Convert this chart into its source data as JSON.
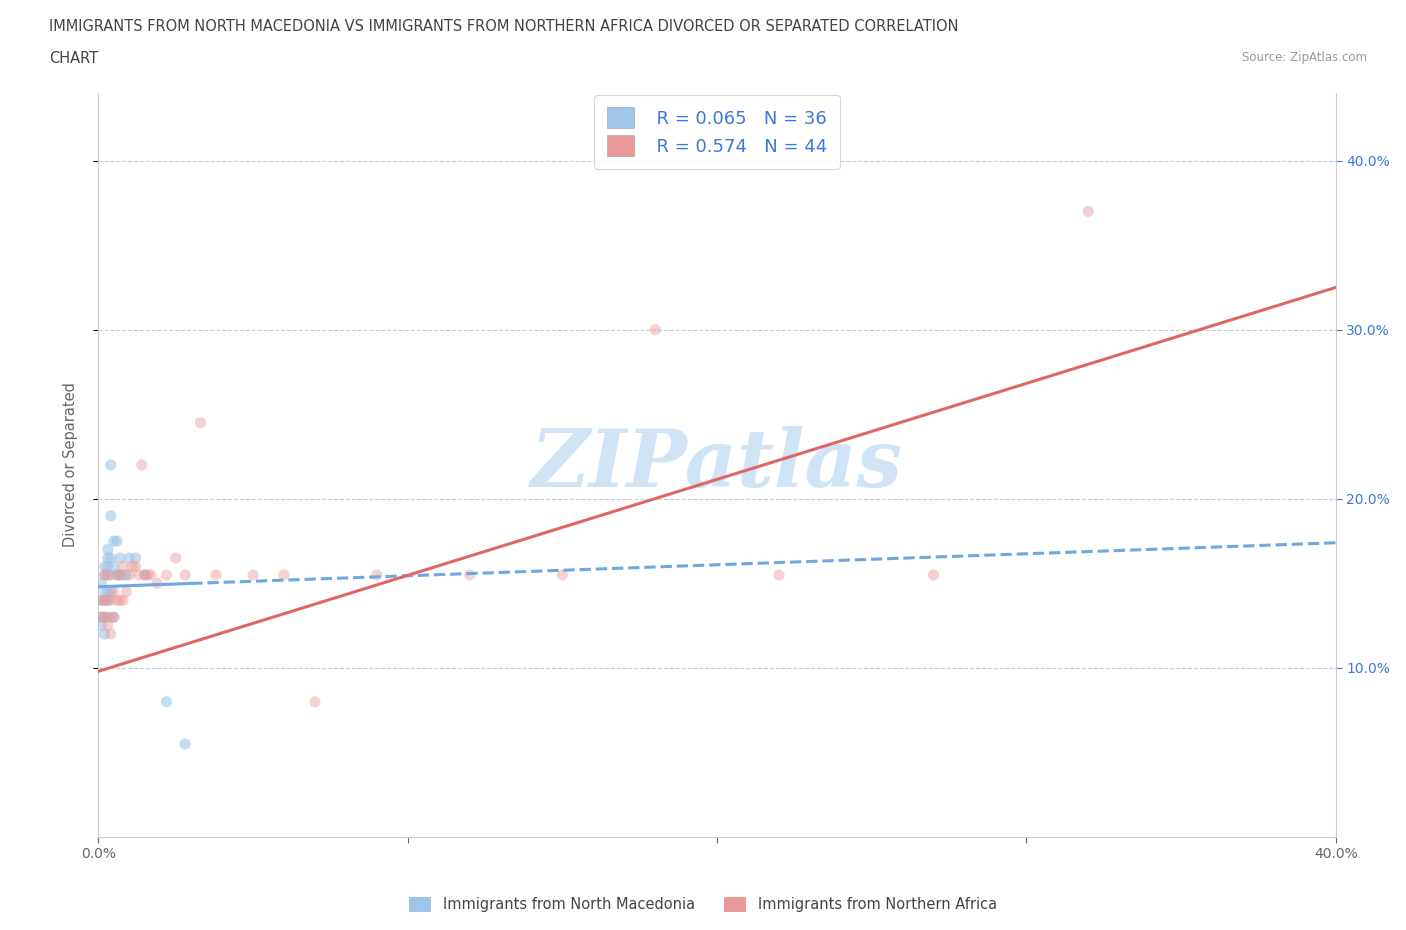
{
  "title_line1": "IMMIGRANTS FROM NORTH MACEDONIA VS IMMIGRANTS FROM NORTHERN AFRICA DIVORCED OR SEPARATED CORRELATION",
  "title_line2": "CHART",
  "source_text": "Source: ZipAtlas.com",
  "ylabel": "Divorced or Separated",
  "xlim": [
    0.0,
    0.4
  ],
  "ylim": [
    0.0,
    0.44
  ],
  "xticks": [
    0.0,
    0.1,
    0.2,
    0.3,
    0.4
  ],
  "yticks": [
    0.1,
    0.2,
    0.3,
    0.4
  ],
  "xticklabels": [
    "0.0%",
    "",
    "",
    "",
    "40.0%"
  ],
  "yticklabels_right": [
    "10.0%",
    "20.0%",
    "30.0%",
    "40.0%"
  ],
  "legend_r1": "R = 0.065",
  "legend_n1": "N = 36",
  "legend_r2": "R = 0.574",
  "legend_n2": "N = 44",
  "color_blue": "#9fc5e8",
  "color_pink": "#ea9999",
  "trendline_blue_color": "#6fa8dc",
  "trendline_pink_color": "#e06666",
  "scatter_blue_alpha": 0.6,
  "scatter_pink_alpha": 0.45,
  "blue_scatter_x": [
    0.001,
    0.001,
    0.001,
    0.001,
    0.002,
    0.002,
    0.002,
    0.002,
    0.002,
    0.002,
    0.003,
    0.003,
    0.003,
    0.003,
    0.003,
    0.003,
    0.003,
    0.004,
    0.004,
    0.004,
    0.004,
    0.004,
    0.005,
    0.005,
    0.005,
    0.006,
    0.006,
    0.007,
    0.007,
    0.008,
    0.009,
    0.01,
    0.012,
    0.015,
    0.022,
    0.028
  ],
  "blue_scatter_y": [
    0.14,
    0.15,
    0.13,
    0.125,
    0.155,
    0.145,
    0.16,
    0.13,
    0.14,
    0.12,
    0.155,
    0.17,
    0.16,
    0.14,
    0.165,
    0.145,
    0.13,
    0.22,
    0.19,
    0.165,
    0.155,
    0.145,
    0.175,
    0.16,
    0.13,
    0.155,
    0.175,
    0.155,
    0.165,
    0.155,
    0.155,
    0.165,
    0.165,
    0.155,
    0.08,
    0.055
  ],
  "pink_scatter_x": [
    0.001,
    0.001,
    0.002,
    0.002,
    0.002,
    0.003,
    0.003,
    0.003,
    0.004,
    0.004,
    0.004,
    0.005,
    0.005,
    0.006,
    0.006,
    0.007,
    0.007,
    0.008,
    0.008,
    0.009,
    0.01,
    0.011,
    0.012,
    0.013,
    0.014,
    0.015,
    0.016,
    0.017,
    0.019,
    0.022,
    0.025,
    0.028,
    0.033,
    0.038,
    0.05,
    0.06,
    0.07,
    0.09,
    0.12,
    0.15,
    0.18,
    0.22,
    0.27,
    0.32
  ],
  "pink_scatter_y": [
    0.14,
    0.13,
    0.155,
    0.14,
    0.13,
    0.155,
    0.14,
    0.125,
    0.14,
    0.13,
    0.12,
    0.145,
    0.13,
    0.155,
    0.14,
    0.155,
    0.14,
    0.16,
    0.14,
    0.145,
    0.155,
    0.16,
    0.16,
    0.155,
    0.22,
    0.155,
    0.155,
    0.155,
    0.15,
    0.155,
    0.165,
    0.155,
    0.245,
    0.155,
    0.155,
    0.155,
    0.08,
    0.155,
    0.155,
    0.155,
    0.3,
    0.155,
    0.155,
    0.37
  ],
  "blue_trend_x": [
    0.0,
    0.4
  ],
  "blue_trend_y": [
    0.148,
    0.174
  ],
  "pink_trend_x": [
    0.0,
    0.4
  ],
  "pink_trend_y": [
    0.098,
    0.325
  ],
  "grid_color": "#cccccc",
  "background_color": "#ffffff",
  "legend_label_blue": "Immigrants from North Macedonia",
  "legend_label_pink": "Immigrants from Northern Africa",
  "watermark_color": "#d0e4f5",
  "right_tick_color": "#3c78d8",
  "title_color": "#434343",
  "source_color": "#999999"
}
